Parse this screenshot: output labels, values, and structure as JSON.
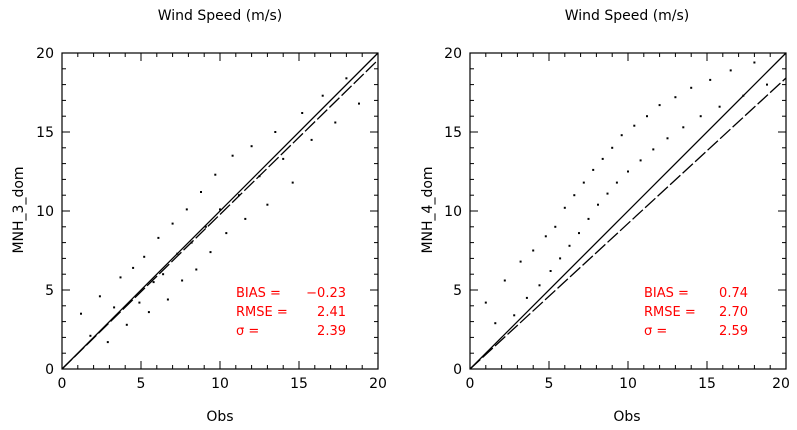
{
  "chart_data": [
    {
      "type": "scatter",
      "title": "Wind Speed (m/s)",
      "xlabel": "Obs",
      "ylabel": "MNH_3_dom",
      "xlim": [
        0,
        20
      ],
      "ylim": [
        0,
        20
      ],
      "xticks": [
        "0",
        "5",
        "10",
        "15",
        "20"
      ],
      "yticks": [
        "0",
        "5",
        "10",
        "15",
        "20"
      ],
      "grid": false,
      "series": [
        {
          "values": [
            [
              1.2,
              3.5
            ],
            [
              1.8,
              2.1
            ],
            [
              2.4,
              4.6
            ],
            [
              2.9,
              1.7
            ],
            [
              3.3,
              3.9
            ],
            [
              3.7,
              5.8
            ],
            [
              4.1,
              2.8
            ],
            [
              4.5,
              6.4
            ],
            [
              4.9,
              4.2
            ],
            [
              5.2,
              7.1
            ],
            [
              5.5,
              3.6
            ],
            [
              5.8,
              5.5
            ],
            [
              6.1,
              8.3
            ],
            [
              6.4,
              6.0
            ],
            [
              6.7,
              4.4
            ],
            [
              7.0,
              9.2
            ],
            [
              7.3,
              7.3
            ],
            [
              7.6,
              5.6
            ],
            [
              7.9,
              10.1
            ],
            [
              8.2,
              8.0
            ],
            [
              8.5,
              6.3
            ],
            [
              8.8,
              11.2
            ],
            [
              9.1,
              9.0
            ],
            [
              9.4,
              7.4
            ],
            [
              9.7,
              12.3
            ],
            [
              10.0,
              10.1
            ],
            [
              10.4,
              8.6
            ],
            [
              10.8,
              13.5
            ],
            [
              11.2,
              11.0
            ],
            [
              11.6,
              9.5
            ],
            [
              12.0,
              14.1
            ],
            [
              12.5,
              12.2
            ],
            [
              13.0,
              10.4
            ],
            [
              13.5,
              15.0
            ],
            [
              14.0,
              13.3
            ],
            [
              14.6,
              11.8
            ],
            [
              15.2,
              16.2
            ],
            [
              15.8,
              14.5
            ],
            [
              16.5,
              17.3
            ],
            [
              17.3,
              15.6
            ],
            [
              18.0,
              18.4
            ],
            [
              18.8,
              16.8
            ]
          ]
        }
      ],
      "annotations": {
        "bias_label": "BIAS =",
        "bias_value": "−0.23",
        "rmse_label": "RMSE =",
        "rmse_value": "2.41",
        "sigma_label": "σ =",
        "sigma_value": "2.39"
      }
    },
    {
      "type": "scatter",
      "title": "Wind Speed (m/s)",
      "xlabel": "Obs",
      "ylabel": "MNH_4_dom",
      "xlim": [
        0,
        20
      ],
      "ylim": [
        0,
        20
      ],
      "xticks": [
        "0",
        "5",
        "10",
        "15",
        "20"
      ],
      "yticks": [
        "0",
        "5",
        "10",
        "15",
        "20"
      ],
      "grid": false,
      "series": [
        {
          "values": [
            [
              1.0,
              4.2
            ],
            [
              1.6,
              2.9
            ],
            [
              2.2,
              5.6
            ],
            [
              2.8,
              3.4
            ],
            [
              3.2,
              6.8
            ],
            [
              3.6,
              4.5
            ],
            [
              4.0,
              7.5
            ],
            [
              4.4,
              5.3
            ],
            [
              4.8,
              8.4
            ],
            [
              5.1,
              6.2
            ],
            [
              5.4,
              9.0
            ],
            [
              5.7,
              7.0
            ],
            [
              6.0,
              10.2
            ],
            [
              6.3,
              7.8
            ],
            [
              6.6,
              11.0
            ],
            [
              6.9,
              8.6
            ],
            [
              7.2,
              11.8
            ],
            [
              7.5,
              9.5
            ],
            [
              7.8,
              12.6
            ],
            [
              8.1,
              10.4
            ],
            [
              8.4,
              13.3
            ],
            [
              8.7,
              11.1
            ],
            [
              9.0,
              14.0
            ],
            [
              9.3,
              11.8
            ],
            [
              9.6,
              14.8
            ],
            [
              10.0,
              12.5
            ],
            [
              10.4,
              15.4
            ],
            [
              10.8,
              13.2
            ],
            [
              11.2,
              16.0
            ],
            [
              11.6,
              13.9
            ],
            [
              12.0,
              16.7
            ],
            [
              12.5,
              14.6
            ],
            [
              13.0,
              17.2
            ],
            [
              13.5,
              15.3
            ],
            [
              14.0,
              17.8
            ],
            [
              14.6,
              16.0
            ],
            [
              15.2,
              18.3
            ],
            [
              15.8,
              16.6
            ],
            [
              16.5,
              18.9
            ],
            [
              17.3,
              17.3
            ],
            [
              18.0,
              19.4
            ],
            [
              18.8,
              18.0
            ]
          ]
        }
      ],
      "annotations": {
        "bias_label": "BIAS =",
        "bias_value": "0.74",
        "rmse_label": "RMSE =",
        "rmse_value": "2.70",
        "sigma_label": "σ =",
        "sigma_value": "2.59"
      }
    }
  ]
}
